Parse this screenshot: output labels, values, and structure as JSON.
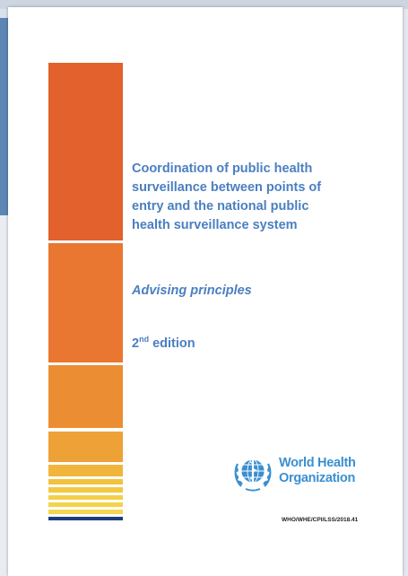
{
  "document": {
    "title_lines": [
      "Coordination of public health",
      "surveillance between points of",
      "entry and the national public",
      "health surveillance system"
    ],
    "subtitle": "Advising principles",
    "edition_number": "2",
    "edition_suffix": "nd",
    "edition_word": " edition",
    "organization_lines": [
      "World Health",
      "Organization"
    ],
    "document_code": "WHO/WHE/CPI/LSS/2018.41"
  },
  "colors": {
    "title_blue": "#4a7fc1",
    "who_blue": "#3a8fd0",
    "stripe_orange": "#e2612c",
    "stripe_yellow": "#f5d650",
    "stripe_navy": "#1f3d7a"
  },
  "icons": {
    "logo": "who-emblem-icon"
  }
}
